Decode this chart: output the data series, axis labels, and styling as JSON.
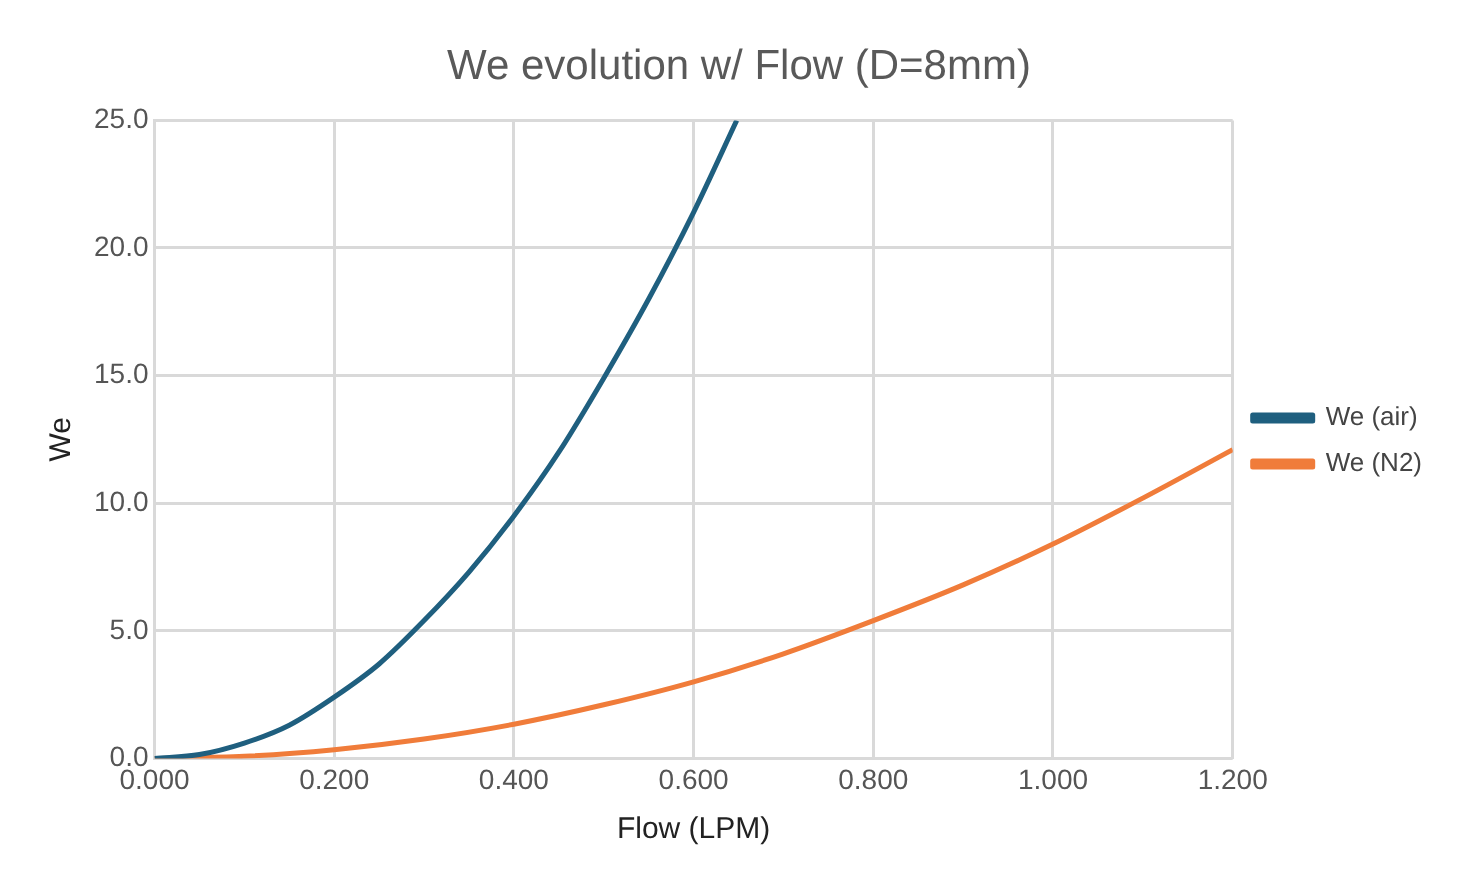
{
  "chart_data": {
    "type": "line",
    "title": "We evolution w/ Flow (D=8mm)",
    "xlabel": "Flow (LPM)",
    "ylabel": "We",
    "xlim": [
      0,
      1.2
    ],
    "ylim": [
      0,
      25
    ],
    "xticks": [
      {
        "value": 0,
        "label": "0.000"
      },
      {
        "value": 0.2,
        "label": "0.200"
      },
      {
        "value": 0.4,
        "label": "0.400"
      },
      {
        "value": 0.6,
        "label": "0.600"
      },
      {
        "value": 0.8,
        "label": "0.800"
      },
      {
        "value": 1.0,
        "label": "1.000"
      },
      {
        "value": 1.2,
        "label": "1.200"
      }
    ],
    "yticks": [
      {
        "value": 0,
        "label": "0.0"
      },
      {
        "value": 5,
        "label": "5.0"
      },
      {
        "value": 10,
        "label": "10.0"
      },
      {
        "value": 15,
        "label": "15.0"
      },
      {
        "value": 20,
        "label": "20.0"
      },
      {
        "value": 25,
        "label": "25.0"
      }
    ],
    "grid": true,
    "legend": "right",
    "marker": "none",
    "line_style": "solid",
    "series": [
      {
        "name": "We (air)",
        "color": "#1f5f7f",
        "x": [
          0,
          0.05,
          0.1,
          0.15,
          0.2,
          0.25,
          0.3,
          0.35,
          0.4,
          0.45,
          0.5,
          0.55,
          0.6,
          0.648
        ],
        "values": [
          0,
          0.15,
          0.6,
          1.3,
          2.4,
          3.7,
          5.4,
          7.3,
          9.5,
          12.0,
          14.9,
          18.0,
          21.4,
          25.0
        ]
      },
      {
        "name": "We (N2)",
        "color": "#f07c3a",
        "x": [
          0,
          0.1,
          0.2,
          0.3,
          0.4,
          0.5,
          0.6,
          0.7,
          0.8,
          0.9,
          1.0,
          1.1,
          1.2
        ],
        "values": [
          0,
          0.08,
          0.34,
          0.76,
          1.34,
          2.1,
          3.0,
          4.1,
          5.4,
          6.8,
          8.4,
          10.2,
          12.1
        ]
      }
    ]
  }
}
